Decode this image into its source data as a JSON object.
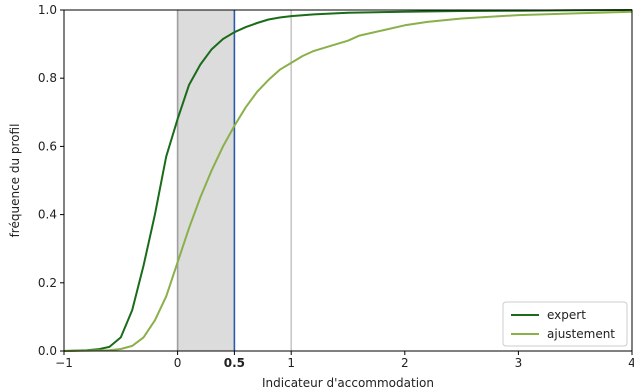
{
  "chart_data": {
    "type": "line",
    "xlabel": "Indicateur d'accommodation",
    "ylabel": "fréquence du profil",
    "xlim": [
      -1,
      4
    ],
    "ylim": [
      0,
      1
    ],
    "xticks": [
      {
        "value": -1,
        "label": "−1"
      },
      {
        "value": 0,
        "label": "0"
      },
      {
        "value": 0.5,
        "label": "0.5",
        "highlight": true
      },
      {
        "value": 1,
        "label": "1"
      },
      {
        "value": 2,
        "label": "2"
      },
      {
        "value": 3,
        "label": "3"
      },
      {
        "value": 4,
        "label": "4"
      }
    ],
    "yticks": [
      {
        "value": 0,
        "label": "0.0"
      },
      {
        "value": 0.2,
        "label": "0.2"
      },
      {
        "value": 0.4,
        "label": "0.4"
      },
      {
        "value": 0.6,
        "label": "0.6"
      },
      {
        "value": 0.8,
        "label": "0.8"
      },
      {
        "value": 1,
        "label": "1.0"
      }
    ],
    "shaded_region": {
      "x0": 0,
      "x1": 0.5,
      "color": "#dcdcdc"
    },
    "vlines": [
      {
        "x": 0,
        "color": "#9e9e9e"
      },
      {
        "x": 0.5,
        "color": "#2a5ba8"
      },
      {
        "x": 1,
        "color": "#c8c8c8"
      }
    ],
    "legend_position": "bottom-right",
    "highlight_color": "#2a5ba8",
    "series": [
      {
        "name": "expert",
        "color": "#1a6b1a",
        "x": [
          -1.0,
          -0.8,
          -0.7,
          -0.6,
          -0.5,
          -0.4,
          -0.3,
          -0.2,
          -0.1,
          0.0,
          0.1,
          0.2,
          0.3,
          0.4,
          0.5,
          0.6,
          0.7,
          0.8,
          0.9,
          1.0,
          1.2,
          1.5,
          2.0,
          2.5,
          3.0,
          3.5,
          4.0
        ],
        "y": [
          0.0,
          0.002,
          0.005,
          0.012,
          0.04,
          0.12,
          0.25,
          0.4,
          0.57,
          0.68,
          0.78,
          0.84,
          0.885,
          0.915,
          0.935,
          0.95,
          0.962,
          0.972,
          0.978,
          0.982,
          0.987,
          0.992,
          0.995,
          0.997,
          0.998,
          0.999,
          1.0
        ]
      },
      {
        "name": "ajustement",
        "color": "#8ab04a",
        "x": [
          -1.0,
          -0.6,
          -0.5,
          -0.4,
          -0.3,
          -0.2,
          -0.1,
          0.0,
          0.1,
          0.2,
          0.3,
          0.4,
          0.5,
          0.6,
          0.7,
          0.8,
          0.9,
          1.0,
          1.1,
          1.2,
          1.4,
          1.5,
          1.6,
          1.8,
          2.0,
          2.2,
          2.5,
          3.0,
          3.5,
          4.0
        ],
        "y": [
          0.0,
          0.002,
          0.006,
          0.015,
          0.04,
          0.09,
          0.16,
          0.26,
          0.36,
          0.45,
          0.53,
          0.6,
          0.66,
          0.715,
          0.76,
          0.795,
          0.825,
          0.845,
          0.865,
          0.88,
          0.9,
          0.91,
          0.925,
          0.94,
          0.955,
          0.965,
          0.975,
          0.985,
          0.99,
          0.995
        ]
      }
    ]
  }
}
